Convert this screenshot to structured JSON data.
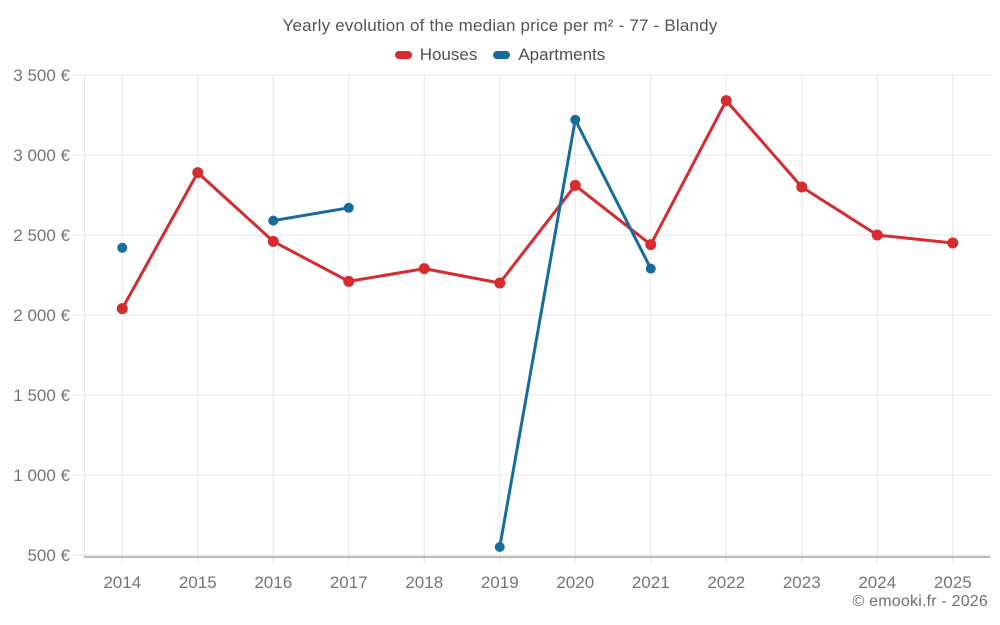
{
  "title": "Yearly evolution of the median price per m² - 77 - Blandy",
  "legend": {
    "items": [
      {
        "label": "Houses",
        "color": "#d62b2f"
      },
      {
        "label": "Apartments",
        "color": "#176c9e"
      }
    ]
  },
  "footer": {
    "credit": "© emooki.fr - 2026"
  },
  "chart_data": {
    "type": "line",
    "title": "Yearly evolution of the median price per m² - 77 - Blandy",
    "categories": [
      "2014",
      "2015",
      "2016",
      "2017",
      "2018",
      "2019",
      "2020",
      "2021",
      "2022",
      "2023",
      "2024",
      "2025"
    ],
    "series": [
      {
        "name": "Houses",
        "color": "#d62b2f",
        "marker_radius": 5.5,
        "line_width": 3,
        "values": [
          2040,
          2890,
          2460,
          2210,
          2290,
          2200,
          2810,
          2440,
          3340,
          2800,
          2500,
          2450
        ]
      },
      {
        "name": "Apartments",
        "color": "#176c9e",
        "marker_radius": 5,
        "line_width": 3,
        "values": [
          2420,
          null,
          2590,
          2670,
          null,
          550,
          3220,
          2290,
          null,
          null,
          null,
          null
        ]
      }
    ],
    "xlabel": "",
    "ylabel": "",
    "ylim": [
      500,
      3500
    ],
    "y_ticks": [
      {
        "value": 3500,
        "label": "3 500 €"
      },
      {
        "value": 3000,
        "label": "3 000 €"
      },
      {
        "value": 2500,
        "label": "2 500 €"
      },
      {
        "value": 2000,
        "label": "2 000 €"
      },
      {
        "value": 1500,
        "label": "1 500 €"
      },
      {
        "value": 1000,
        "label": "1 000 €"
      },
      {
        "value": 500,
        "label": "500 €"
      }
    ],
    "currency": "€",
    "grid": true,
    "legend_position": "top"
  },
  "colors": {
    "grid": "#e7e7e7",
    "axis_line": "#a3a3a3",
    "axis_label": "#757575",
    "title_text": "#545454",
    "legend_text": "#4f4f4f",
    "footer_text": "#6e6e6e",
    "background": "#ffffff"
  }
}
